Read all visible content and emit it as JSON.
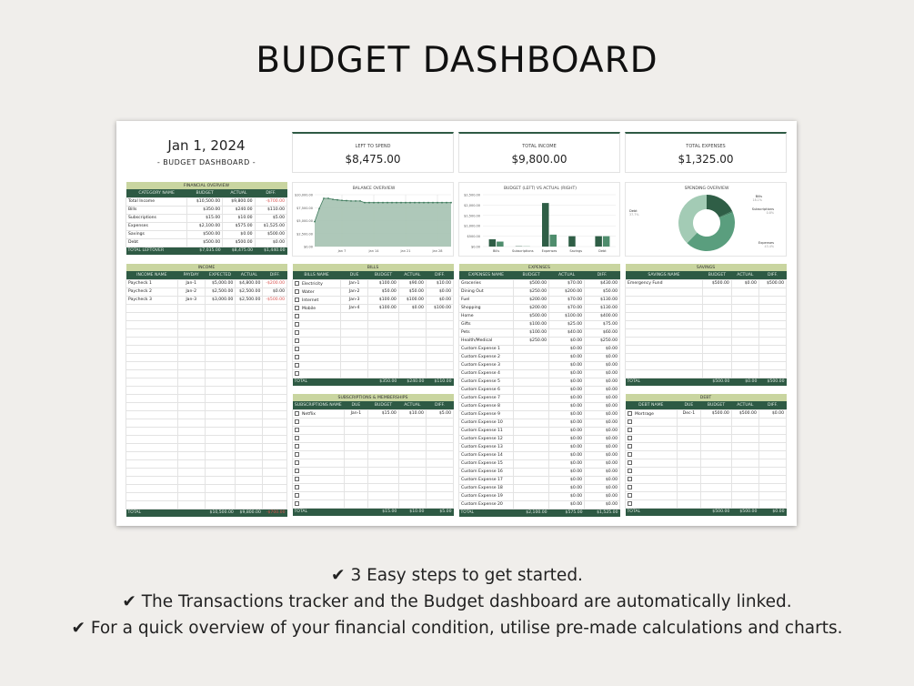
{
  "page_title": "BUDGET DASHBOARD",
  "sheet": {
    "date": "Jan 1, 2024",
    "subtitle": "- BUDGET DASHBOARD -",
    "cards": [
      {
        "label": "LEFT TO SPEND",
        "value": "$8,475.00"
      },
      {
        "label": "TOTAL INCOME",
        "value": "$9,800.00"
      },
      {
        "label": "TOTAL EXPENSES",
        "value": "$1,325.00"
      }
    ]
  },
  "tables": {
    "overview": {
      "title": "FINANCIAL OVERVIEW",
      "columns": [
        "CATEGORY NAME",
        "BUDGET",
        "ACTUAL",
        "DIFF."
      ],
      "rows": [
        [
          "Total Income",
          "$10,500.00",
          "$9,800.00",
          "-$700.00"
        ],
        [
          "Bills",
          "$350.00",
          "$240.00",
          "$110.00"
        ],
        [
          "Subscriptions",
          "$15.00",
          "$10.00",
          "$5.00"
        ],
        [
          "Expenses",
          "$2,100.00",
          "$575.00",
          "$1,525.00"
        ],
        [
          "Savings",
          "$500.00",
          "$0.00",
          "$500.00"
        ],
        [
          "Debt",
          "$500.00",
          "$500.00",
          "$0.00"
        ]
      ],
      "total": [
        "TOTAL LEFTOVER",
        "$7,035.00",
        "$8,475.00",
        "$1,440.00"
      ]
    },
    "income": {
      "title": "INCOME",
      "columns": [
        "INCOME NAME",
        "PAYDAY",
        "EXPECTED",
        "ACTUAL",
        "DIFF."
      ],
      "rows": [
        [
          "Paycheck 1",
          "Jan-1",
          "$5,000.00",
          "$4,800.00",
          "-$200.00"
        ],
        [
          "Paycheck 2",
          "Jan-2",
          "$2,500.00",
          "$2,500.00",
          "$0.00"
        ],
        [
          "Paycheck 3",
          "Jan-3",
          "$3,000.00",
          "$2,500.00",
          "-$500.00"
        ]
      ],
      "total": [
        "TOTAL",
        "",
        "$10,500.00",
        "$9,800.00",
        "-$700.00"
      ]
    },
    "bills": {
      "title": "BILLS",
      "columns": [
        "BILLS NAME",
        "DUE",
        "BUDGET",
        "ACTUAL",
        "DIFF."
      ],
      "rows": [
        [
          "Electricity",
          "Jan-1",
          "$100.00",
          "$90.00",
          "$10.00"
        ],
        [
          "Water",
          "Jan-2",
          "$50.00",
          "$50.00",
          "$0.00"
        ],
        [
          "Internet",
          "Jan-3",
          "$100.00",
          "$100.00",
          "$0.00"
        ],
        [
          "Mobile",
          "Jan-4",
          "$100.00",
          "$0.00",
          "$100.00"
        ]
      ],
      "total": [
        "TOTAL",
        "",
        "$350.00",
        "$240.00",
        "$110.00"
      ]
    },
    "subscriptions": {
      "title": "SUBSCRIPTIONS & MEMBERSHIPS",
      "columns": [
        "SUBSCRIPTIONS NAME",
        "DUE",
        "BUDGET",
        "ACTUAL",
        "DIFF."
      ],
      "rows": [
        [
          "Netflix",
          "Jan-1",
          "$15.00",
          "$10.00",
          "$5.00"
        ]
      ],
      "total": [
        "TOTAL",
        "",
        "$15.00",
        "$10.00",
        "$5.00"
      ]
    },
    "expenses": {
      "title": "EXPENSES",
      "columns": [
        "EXPENSES NAME",
        "BUDGET",
        "ACTUAL",
        "DIFF."
      ],
      "rows": [
        [
          "Groceries",
          "$500.00",
          "$70.00",
          "$430.00"
        ],
        [
          "Dining Out",
          "$250.00",
          "$200.00",
          "$50.00"
        ],
        [
          "Fuel",
          "$200.00",
          "$70.00",
          "$130.00"
        ],
        [
          "Shopping",
          "$200.00",
          "$70.00",
          "$130.00"
        ],
        [
          "Home",
          "$500.00",
          "$100.00",
          "$400.00"
        ],
        [
          "Gifts",
          "$100.00",
          "$25.00",
          "$75.00"
        ],
        [
          "Pets",
          "$100.00",
          "$40.00",
          "$60.00"
        ],
        [
          "Health/Medical",
          "$250.00",
          "$0.00",
          "$250.00"
        ],
        [
          "Custom Expense 1",
          "",
          "$0.00",
          "$0.00"
        ],
        [
          "Custom Expense 2",
          "",
          "$0.00",
          "$0.00"
        ],
        [
          "Custom Expense 3",
          "",
          "$0.00",
          "$0.00"
        ],
        [
          "Custom Expense 4",
          "",
          "$0.00",
          "$0.00"
        ],
        [
          "Custom Expense 5",
          "",
          "$0.00",
          "$0.00"
        ],
        [
          "Custom Expense 6",
          "",
          "$0.00",
          "$0.00"
        ],
        [
          "Custom Expense 7",
          "",
          "$0.00",
          "$0.00"
        ],
        [
          "Custom Expense 8",
          "",
          "$0.00",
          "$0.00"
        ],
        [
          "Custom Expense 9",
          "",
          "$0.00",
          "$0.00"
        ],
        [
          "Custom Expense 10",
          "",
          "$0.00",
          "$0.00"
        ],
        [
          "Custom Expense 11",
          "",
          "$0.00",
          "$0.00"
        ],
        [
          "Custom Expense 12",
          "",
          "$0.00",
          "$0.00"
        ],
        [
          "Custom Expense 13",
          "",
          "$0.00",
          "$0.00"
        ],
        [
          "Custom Expense 14",
          "",
          "$0.00",
          "$0.00"
        ],
        [
          "Custom Expense 15",
          "",
          "$0.00",
          "$0.00"
        ],
        [
          "Custom Expense 16",
          "",
          "$0.00",
          "$0.00"
        ],
        [
          "Custom Expense 17",
          "",
          "$0.00",
          "$0.00"
        ],
        [
          "Custom Expense 18",
          "",
          "$0.00",
          "$0.00"
        ],
        [
          "Custom Expense 19",
          "",
          "$0.00",
          "$0.00"
        ],
        [
          "Custom Expense 20",
          "",
          "$0.00",
          "$0.00"
        ]
      ],
      "total": [
        "TOTAL",
        "$2,100.00",
        "$575.00",
        "$1,525.00"
      ]
    },
    "savings": {
      "title": "SAVINGS",
      "columns": [
        "SAVINGS NAME",
        "BUDGET",
        "ACTUAL",
        "DIFF."
      ],
      "rows": [
        [
          "Emergency Fund",
          "$500.00",
          "$0.00",
          "$500.00"
        ]
      ],
      "total": [
        "TOTAL",
        "$500.00",
        "$0.00",
        "$500.00"
      ]
    },
    "debt": {
      "title": "DEBT",
      "columns": [
        "DEBT NAME",
        "DUE",
        "BUDGET",
        "ACTUAL",
        "DIFF."
      ],
      "rows": [
        [
          "Mortrage",
          "Dec-1",
          "$500.00",
          "$500.00",
          "$0.00"
        ]
      ],
      "total": [
        "TOTAL",
        "",
        "$500.00",
        "$500.00",
        "$0.00"
      ]
    }
  },
  "chart_data": [
    {
      "type": "area",
      "title": "BALANCE OVERVIEW",
      "x_tick_labels": [
        "Jan 7",
        "Jan 14",
        "Jan 21",
        "Jan 28"
      ],
      "y_tick_labels": [
        "$0.00",
        "$2,500.00",
        "$5,000.00",
        "$7,500.00",
        "$10,000.00"
      ],
      "ylim": [
        0,
        10000
      ],
      "x": [
        "Jan 1",
        "Jan 2",
        "Jan 3",
        "Jan 4",
        "Jan 5",
        "Jan 6",
        "Jan 7",
        "Jan 8",
        "Jan 9",
        "Jan 10",
        "Jan 11",
        "Jan 12",
        "Jan 13",
        "Jan 14",
        "Jan 15",
        "Jan 16",
        "Jan 17",
        "Jan 18",
        "Jan 19",
        "Jan 20",
        "Jan 21",
        "Jan 22",
        "Jan 23",
        "Jan 24",
        "Jan 25",
        "Jan 26",
        "Jan 27",
        "Jan 28",
        "Jan 29",
        "Jan 30",
        "Jan 31"
      ],
      "values": [
        4800,
        7300,
        9300,
        9300,
        9100,
        9000,
        8900,
        8850,
        8800,
        8800,
        8800,
        8475,
        8475,
        8475,
        8475,
        8475,
        8475,
        8475,
        8475,
        8475,
        8475,
        8475,
        8475,
        8475,
        8475,
        8475,
        8475,
        8475,
        8475,
        8475,
        8475
      ],
      "grid": true
    },
    {
      "type": "bar",
      "title": "BUDGET (LEFT) VS ACTUAL (RIGHT)",
      "categories": [
        "Bills",
        "Subscriptions",
        "Expenses",
        "Savings",
        "Debt"
      ],
      "y_tick_labels": [
        "$0.00",
        "$500.00",
        "$1,000.00",
        "$1,500.00",
        "$2,000.00",
        "$2,500.00"
      ],
      "ylim": [
        0,
        2500
      ],
      "series": [
        {
          "values": [
            350,
            15,
            2100,
            500,
            500
          ]
        },
        {
          "values": [
            240,
            10,
            575,
            0,
            500
          ]
        }
      ],
      "grid": true
    },
    {
      "type": "pie",
      "title": "SPENDING OVERVIEW",
      "categories": [
        "Bills",
        "Subscriptions",
        "Expenses",
        "Debt"
      ],
      "values": [
        240,
        10,
        575,
        500
      ],
      "labels": [
        "18.1%",
        "0.8%",
        "43.4%",
        "37.7%"
      ]
    }
  ],
  "colors": {
    "dark_green": "#2e5a44",
    "header_green": "#c9d5a0",
    "negative": "#d9534f",
    "pie": [
      "#2f5e46",
      "#3f7d5e",
      "#5a9e7e",
      "#a3cbb5"
    ],
    "bars": [
      "#2f5e46",
      "#4f8d6d"
    ],
    "area": "#a5c2b1"
  },
  "bullets": [
    "3 Easy steps to get started.",
    "The Transactions tracker and the Budget dashboard are automatically linked.",
    "For a quick overview of your financial condition, utilise pre-made calculations and charts."
  ]
}
